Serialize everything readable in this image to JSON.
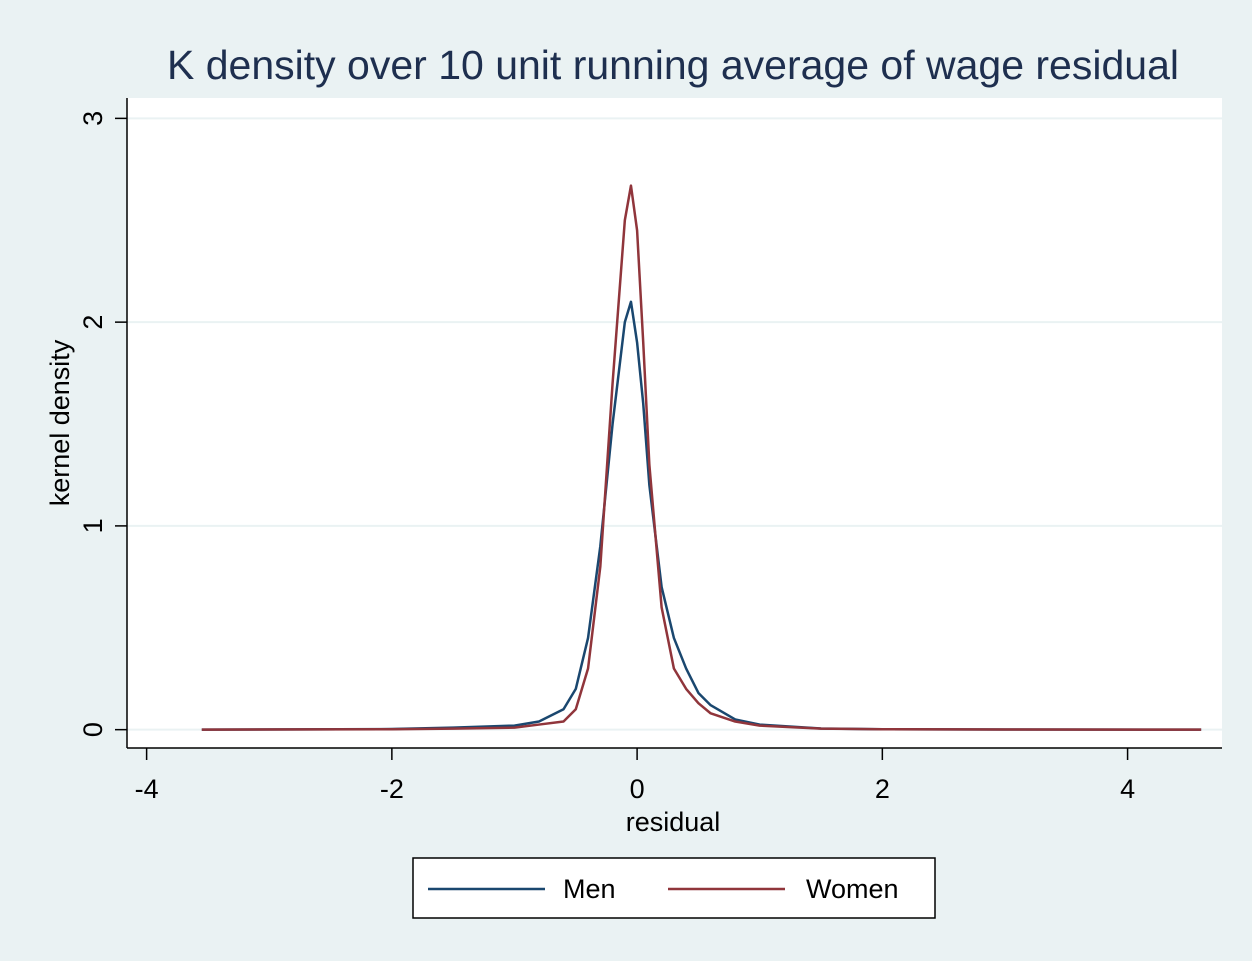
{
  "chart_data": {
    "type": "line",
    "title": "K density over 10 unit running average of wage residual",
    "x_label": "residual",
    "y_label": "kernel density",
    "x": [
      -3.55,
      -2,
      -1.5,
      -1,
      -0.8,
      -0.6,
      -0.5,
      -0.4,
      -0.3,
      -0.2,
      -0.1,
      -0.05,
      0,
      0.05,
      0.1,
      0.2,
      0.3,
      0.4,
      0.5,
      0.6,
      0.8,
      1,
      1.5,
      2,
      3,
      4.6
    ],
    "series": [
      {
        "name": "Men",
        "color": "#1a476f",
        "values": [
          0,
          0.003,
          0.01,
          0.02,
          0.04,
          0.1,
          0.2,
          0.45,
          0.9,
          1.5,
          2.0,
          2.1,
          1.9,
          1.6,
          1.2,
          0.7,
          0.45,
          0.3,
          0.18,
          0.12,
          0.05,
          0.025,
          0.006,
          0.002,
          0.001,
          0
        ]
      },
      {
        "name": "Women",
        "color": "#90353b",
        "values": [
          0,
          0.002,
          0.005,
          0.01,
          0.025,
          0.04,
          0.1,
          0.3,
          0.8,
          1.7,
          2.5,
          2.67,
          2.45,
          1.9,
          1.3,
          0.6,
          0.3,
          0.2,
          0.13,
          0.08,
          0.04,
          0.02,
          0.005,
          0.002,
          0.001,
          0
        ]
      }
    ],
    "xlim": [
      -4.16,
      4.77
    ],
    "xticks": [
      -4,
      -2,
      0,
      2,
      4
    ],
    "ylim": [
      -0.09,
      3.1
    ],
    "yticks": [
      0,
      1,
      2,
      3
    ],
    "grid": true,
    "legend": "bottom"
  }
}
